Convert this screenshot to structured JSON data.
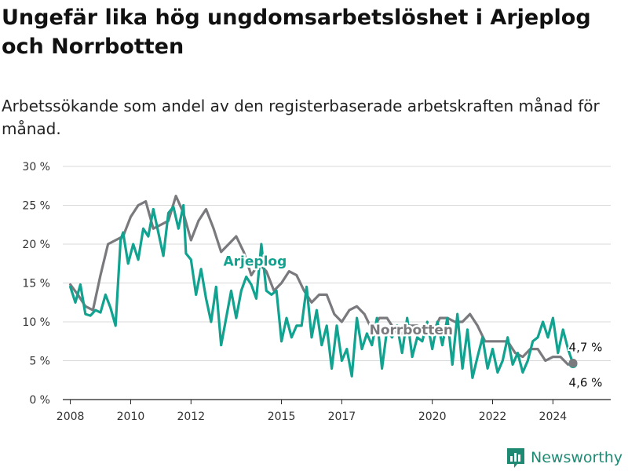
{
  "header": {
    "title": "Ungefär lika hög ungdomsarbetslöshet i Arjeplog och Norrbotten",
    "subtitle": "Arbetssökande som andel av den registerbaserade arbetskraften månad för månad."
  },
  "brand": {
    "name": "Newsworthy",
    "icon": "bar-chart-logo-icon",
    "color": "#1e8a74"
  },
  "colors": {
    "arjeplog": "#11a290",
    "norrbotten": "#7a7a7e",
    "grid": "#d8d8d8",
    "axis": "#222222"
  },
  "chart_data": {
    "type": "line",
    "title": "Ungefär lika hög ungdomsarbetslöshet i Arjeplog och Norrbotten",
    "subtitle": "Arbetssökande som andel av den registerbaserade arbetskraften månad för månad.",
    "xlabel": "",
    "ylabel": "",
    "x_ticks": [
      "2008",
      "2010",
      "2012",
      "2015",
      "2017",
      "2020",
      "2022",
      "2024"
    ],
    "y_ticks": [
      "0 %",
      "5 %",
      "10 %",
      "15 %",
      "20 %",
      "25 %",
      "30 %"
    ],
    "xlim": [
      "2008-01",
      "2025-12"
    ],
    "ylim": [
      0,
      30
    ],
    "grid": true,
    "series": [
      {
        "name": "Arjeplog",
        "color": "#11a290",
        "end_label": "4,6 %",
        "points": [
          [
            "2008-01",
            14.5
          ],
          [
            "2008-03",
            12.5
          ],
          [
            "2008-05",
            14.8
          ],
          [
            "2008-07",
            11.0
          ],
          [
            "2008-09",
            10.8
          ],
          [
            "2008-11",
            11.5
          ],
          [
            "2009-01",
            11.2
          ],
          [
            "2009-03",
            13.5
          ],
          [
            "2009-05",
            11.8
          ],
          [
            "2009-07",
            9.5
          ],
          [
            "2009-09",
            20.5
          ],
          [
            "2009-10",
            21.5
          ],
          [
            "2009-12",
            17.5
          ],
          [
            "2010-02",
            20.0
          ],
          [
            "2010-04",
            18.0
          ],
          [
            "2010-06",
            22.0
          ],
          [
            "2010-08",
            21.0
          ],
          [
            "2010-10",
            24.5
          ],
          [
            "2010-12",
            21.5
          ],
          [
            "2011-02",
            18.5
          ],
          [
            "2011-04",
            24.0
          ],
          [
            "2011-06",
            24.8
          ],
          [
            "2011-08",
            22.0
          ],
          [
            "2011-10",
            25.0
          ],
          [
            "2011-11",
            18.8
          ],
          [
            "2012-01",
            18.0
          ],
          [
            "2012-03",
            13.5
          ],
          [
            "2012-05",
            16.8
          ],
          [
            "2012-07",
            13.0
          ],
          [
            "2012-09",
            10.0
          ],
          [
            "2012-11",
            14.5
          ],
          [
            "2013-01",
            7.0
          ],
          [
            "2013-03",
            10.5
          ],
          [
            "2013-05",
            14.0
          ],
          [
            "2013-07",
            10.5
          ],
          [
            "2013-09",
            14.0
          ],
          [
            "2013-11",
            15.8
          ],
          [
            "2014-01",
            14.8
          ],
          [
            "2014-03",
            13.0
          ],
          [
            "2014-05",
            20.0
          ],
          [
            "2014-07",
            14.0
          ],
          [
            "2014-09",
            13.5
          ],
          [
            "2014-11",
            14.0
          ],
          [
            "2015-01",
            7.5
          ],
          [
            "2015-03",
            10.5
          ],
          [
            "2015-05",
            8.0
          ],
          [
            "2015-07",
            9.5
          ],
          [
            "2015-09",
            9.5
          ],
          [
            "2015-11",
            14.5
          ],
          [
            "2016-01",
            8.0
          ],
          [
            "2016-03",
            11.5
          ],
          [
            "2016-05",
            7.0
          ],
          [
            "2016-07",
            9.5
          ],
          [
            "2016-09",
            4.0
          ],
          [
            "2016-11",
            9.5
          ],
          [
            "2017-01",
            5.0
          ],
          [
            "2017-03",
            6.5
          ],
          [
            "2017-05",
            3.0
          ],
          [
            "2017-07",
            10.5
          ],
          [
            "2017-09",
            6.5
          ],
          [
            "2017-11",
            8.5
          ],
          [
            "2018-01",
            7.0
          ],
          [
            "2018-03",
            10.5
          ],
          [
            "2018-05",
            4.0
          ],
          [
            "2018-07",
            9.0
          ],
          [
            "2018-09",
            8.0
          ],
          [
            "2018-11",
            9.5
          ],
          [
            "2019-01",
            6.0
          ],
          [
            "2019-03",
            10.5
          ],
          [
            "2019-05",
            5.5
          ],
          [
            "2019-07",
            8.0
          ],
          [
            "2019-09",
            7.5
          ],
          [
            "2019-11",
            10.0
          ],
          [
            "2020-01",
            6.5
          ],
          [
            "2020-03",
            10.0
          ],
          [
            "2020-05",
            7.0
          ],
          [
            "2020-07",
            10.5
          ],
          [
            "2020-09",
            4.5
          ],
          [
            "2020-11",
            11.0
          ],
          [
            "2021-01",
            4.0
          ],
          [
            "2021-03",
            9.0
          ],
          [
            "2021-05",
            2.8
          ],
          [
            "2021-07",
            5.5
          ],
          [
            "2021-09",
            8.0
          ],
          [
            "2021-11",
            4.0
          ],
          [
            "2022-01",
            6.5
          ],
          [
            "2022-03",
            3.5
          ],
          [
            "2022-05",
            5.0
          ],
          [
            "2022-07",
            8.0
          ],
          [
            "2022-09",
            4.5
          ],
          [
            "2022-11",
            6.0
          ],
          [
            "2023-01",
            3.5
          ],
          [
            "2023-03",
            5.0
          ],
          [
            "2023-05",
            7.5
          ],
          [
            "2023-07",
            8.0
          ],
          [
            "2023-09",
            10.0
          ],
          [
            "2023-11",
            8.0
          ],
          [
            "2024-01",
            10.5
          ],
          [
            "2024-03",
            6.0
          ],
          [
            "2024-05",
            9.0
          ],
          [
            "2024-07",
            6.5
          ],
          [
            "2024-09",
            4.6
          ]
        ]
      },
      {
        "name": "Norrbotten",
        "color": "#7a7a7e",
        "end_label": "4,7 %",
        "points": [
          [
            "2008-01",
            14.8
          ],
          [
            "2008-04",
            13.5
          ],
          [
            "2008-07",
            12.0
          ],
          [
            "2008-10",
            11.5
          ],
          [
            "2009-01",
            16.0
          ],
          [
            "2009-04",
            20.0
          ],
          [
            "2009-07",
            20.5
          ],
          [
            "2009-10",
            21.0
          ],
          [
            "2010-01",
            23.5
          ],
          [
            "2010-04",
            25.0
          ],
          [
            "2010-07",
            25.5
          ],
          [
            "2010-10",
            22.0
          ],
          [
            "2011-01",
            22.5
          ],
          [
            "2011-04",
            23.0
          ],
          [
            "2011-07",
            26.2
          ],
          [
            "2011-10",
            24.0
          ],
          [
            "2012-01",
            20.5
          ],
          [
            "2012-04",
            23.0
          ],
          [
            "2012-07",
            24.5
          ],
          [
            "2012-10",
            22.0
          ],
          [
            "2013-01",
            19.0
          ],
          [
            "2013-04",
            20.0
          ],
          [
            "2013-07",
            21.0
          ],
          [
            "2013-10",
            19.0
          ],
          [
            "2014-01",
            16.0
          ],
          [
            "2014-04",
            17.5
          ],
          [
            "2014-07",
            16.5
          ],
          [
            "2014-10",
            14.0
          ],
          [
            "2015-01",
            15.0
          ],
          [
            "2015-04",
            16.5
          ],
          [
            "2015-07",
            16.0
          ],
          [
            "2015-10",
            14.0
          ],
          [
            "2016-01",
            12.5
          ],
          [
            "2016-04",
            13.5
          ],
          [
            "2016-07",
            13.5
          ],
          [
            "2016-10",
            11.0
          ],
          [
            "2017-01",
            10.0
          ],
          [
            "2017-04",
            11.5
          ],
          [
            "2017-07",
            12.0
          ],
          [
            "2017-10",
            11.0
          ],
          [
            "2018-01",
            9.0
          ],
          [
            "2018-04",
            10.5
          ],
          [
            "2018-07",
            10.5
          ],
          [
            "2018-10",
            9.0
          ],
          [
            "2019-01",
            8.5
          ],
          [
            "2019-04",
            9.5
          ],
          [
            "2019-07",
            9.5
          ],
          [
            "2019-10",
            8.5
          ],
          [
            "2020-01",
            8.5
          ],
          [
            "2020-04",
            10.5
          ],
          [
            "2020-07",
            10.5
          ],
          [
            "2020-10",
            10.0
          ],
          [
            "2021-01",
            10.0
          ],
          [
            "2021-04",
            11.0
          ],
          [
            "2021-07",
            9.5
          ],
          [
            "2021-10",
            7.5
          ],
          [
            "2022-01",
            7.5
          ],
          [
            "2022-04",
            7.5
          ],
          [
            "2022-07",
            7.5
          ],
          [
            "2022-10",
            6.0
          ],
          [
            "2023-01",
            5.5
          ],
          [
            "2023-04",
            6.5
          ],
          [
            "2023-07",
            6.5
          ],
          [
            "2023-10",
            5.0
          ],
          [
            "2024-01",
            5.5
          ],
          [
            "2024-04",
            5.5
          ],
          [
            "2024-07",
            4.5
          ],
          [
            "2024-09",
            4.7
          ]
        ]
      }
    ]
  }
}
